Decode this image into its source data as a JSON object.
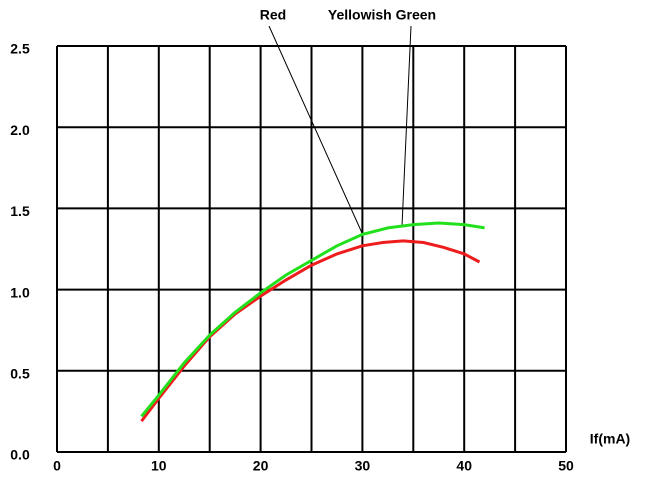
{
  "chart_data": {
    "type": "line",
    "annotations": [
      "Red",
      "Yellowish Green"
    ],
    "xlabel": "If(mA)",
    "xlim": [
      0,
      50
    ],
    "xticks": [
      0,
      10,
      20,
      30,
      40,
      50
    ],
    "xgrid": [
      5,
      15,
      25,
      35,
      45
    ],
    "ylim": [
      0,
      2.5
    ],
    "yticks": [
      {
        "value": 0,
        "label": "0.0"
      },
      {
        "value": 0.5,
        "label": "0.5"
      },
      {
        "value": 1,
        "label": "1.0"
      },
      {
        "value": 1.5,
        "label": "1.5"
      },
      {
        "value": 2,
        "label": "2.0"
      },
      {
        "value": 2.5,
        "label": "2.5"
      }
    ],
    "grid": true,
    "series": [
      {
        "name": "Red",
        "color": "#ee1c1c",
        "x": [
          8.3,
          10,
          12.5,
          15,
          17.5,
          20,
          22.5,
          25,
          27.5,
          30,
          32,
          34,
          36,
          38,
          40,
          41.5
        ],
        "values": [
          0.19,
          0.33,
          0.53,
          0.71,
          0.85,
          0.96,
          1.06,
          1.15,
          1.22,
          1.27,
          1.29,
          1.3,
          1.29,
          1.26,
          1.22,
          1.17
        ]
      },
      {
        "name": "Yellowish Green",
        "color": "#22e01c",
        "x": [
          8.3,
          10,
          12.5,
          15,
          17.5,
          20,
          22.5,
          25,
          27.5,
          30,
          32.5,
          35,
          37.5,
          40,
          42
        ],
        "values": [
          0.22,
          0.35,
          0.55,
          0.72,
          0.86,
          0.98,
          1.09,
          1.18,
          1.27,
          1.34,
          1.38,
          1.4,
          1.41,
          1.4,
          1.38
        ]
      }
    ]
  }
}
